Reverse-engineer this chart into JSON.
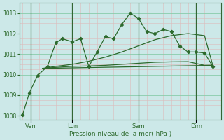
{
  "background_color": "#cce8e8",
  "grid_major_color": "#88ccaa",
  "grid_minor_color": "#ddbbbb",
  "line_color": "#2d6a2d",
  "xlabel": "Pression niveau de la mer( hPa )",
  "ylim": [
    1007.8,
    1013.5
  ],
  "yticks": [
    1008,
    1009,
    1010,
    1011,
    1012,
    1013
  ],
  "xlim": [
    -0.2,
    12.0
  ],
  "day_positions": [
    0.5,
    3.0,
    7.0,
    10.5
  ],
  "day_labels": [
    "Ven",
    "Lun",
    "Sam",
    "Dim"
  ],
  "day_vline_x": [
    0.5,
    3.0,
    7.0,
    10.5
  ],
  "series_main": {
    "x": [
      0,
      0.4,
      0.9,
      1.5,
      2.0,
      2.4,
      3.0,
      3.5,
      4.0,
      4.5,
      5.0,
      5.5,
      6.0,
      6.5,
      7.0,
      7.5,
      8.0,
      8.5,
      9.0,
      9.5,
      10.0,
      10.5,
      11.0,
      11.5
    ],
    "y": [
      1008.05,
      1009.1,
      1009.95,
      1010.4,
      1011.55,
      1011.75,
      1011.6,
      1011.75,
      1010.4,
      1011.1,
      1011.85,
      1011.75,
      1012.45,
      1013.0,
      1012.75,
      1012.1,
      1012.0,
      1012.2,
      1012.1,
      1011.4,
      1011.1,
      1011.1,
      1011.05,
      1010.4
    ]
  },
  "series_trend1": {
    "x": [
      1.2,
      2.0,
      3.0,
      4.0,
      5.0,
      6.0,
      7.0,
      8.0,
      9.0,
      10.0,
      11.0,
      11.5
    ],
    "y": [
      1010.3,
      1010.4,
      1010.5,
      1010.65,
      1010.85,
      1011.1,
      1011.4,
      1011.7,
      1011.9,
      1012.0,
      1011.9,
      1010.45
    ]
  },
  "series_trend2": {
    "x": [
      1.2,
      2.0,
      3.0,
      4.0,
      5.0,
      6.0,
      7.0,
      8.0,
      9.0,
      10.0,
      11.0,
      11.5
    ],
    "y": [
      1010.3,
      1010.35,
      1010.4,
      1010.42,
      1010.45,
      1010.5,
      1010.55,
      1010.6,
      1010.62,
      1010.63,
      1010.45,
      1010.45
    ]
  },
  "series_trend3": {
    "x": [
      1.2,
      11.5
    ],
    "y": [
      1010.3,
      1010.45
    ]
  }
}
